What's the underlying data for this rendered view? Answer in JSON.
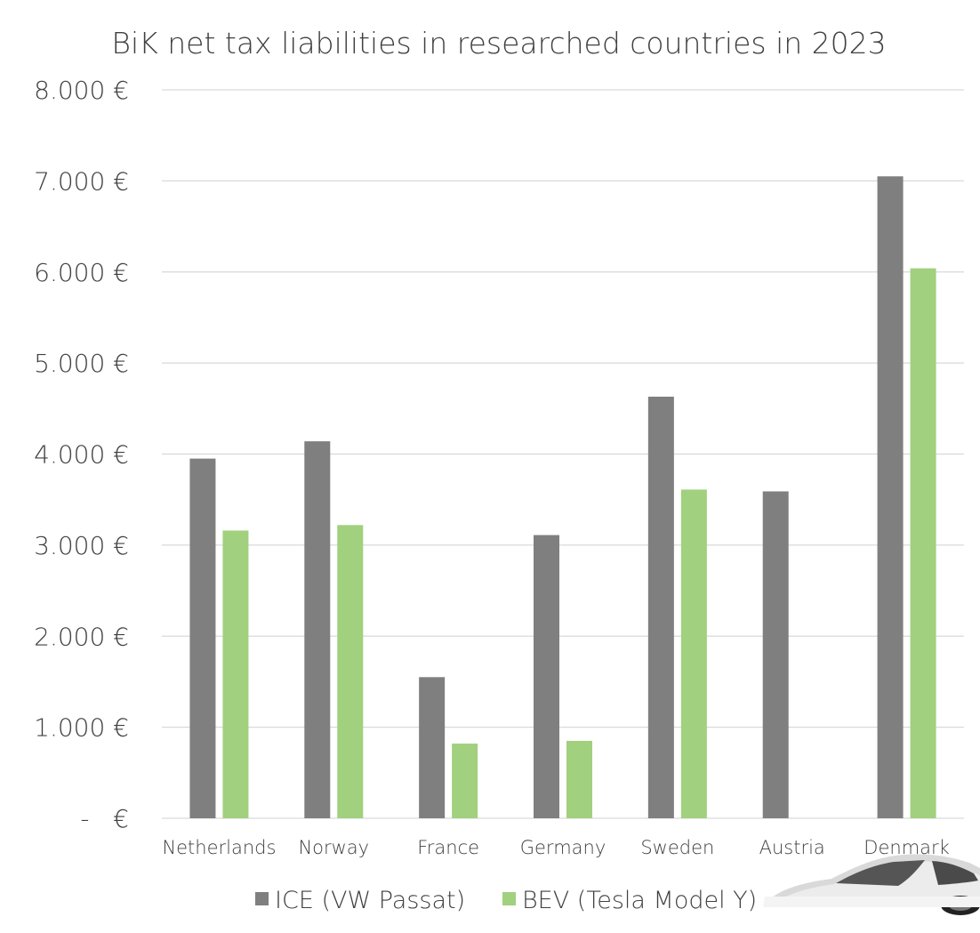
{
  "chart_data": {
    "type": "bar",
    "title": "BiK net tax liabilities in researched countries in 2023",
    "categories": [
      "Netherlands",
      "Norway",
      "France",
      "Germany",
      "Sweden",
      "Austria",
      "Denmark"
    ],
    "series": [
      {
        "name": "ICE (VW Passat)",
        "color": "#7f7f7f",
        "values": [
          3950,
          4140,
          1550,
          3110,
          4630,
          3590,
          7050
        ]
      },
      {
        "name": "BEV (Tesla Model Y)",
        "color": "#a1d07e",
        "values": [
          3160,
          3220,
          820,
          850,
          3610,
          0,
          6040
        ]
      }
    ],
    "ylim": [
      0,
      8000
    ],
    "yticks": [
      {
        "value": 8000,
        "label": "8.000 €"
      },
      {
        "value": 7000,
        "label": "7.000 €"
      },
      {
        "value": 6000,
        "label": "6.000 €"
      },
      {
        "value": 5000,
        "label": "5.000 €"
      },
      {
        "value": 4000,
        "label": "4.000 €"
      },
      {
        "value": 3000,
        "label": "3.000 €"
      },
      {
        "value": 2000,
        "label": "2.000 €"
      },
      {
        "value": 1000,
        "label": "1.000 €"
      },
      {
        "value": 0,
        "label": "-   €"
      }
    ],
    "grid": true,
    "legend_position": "bottom"
  }
}
